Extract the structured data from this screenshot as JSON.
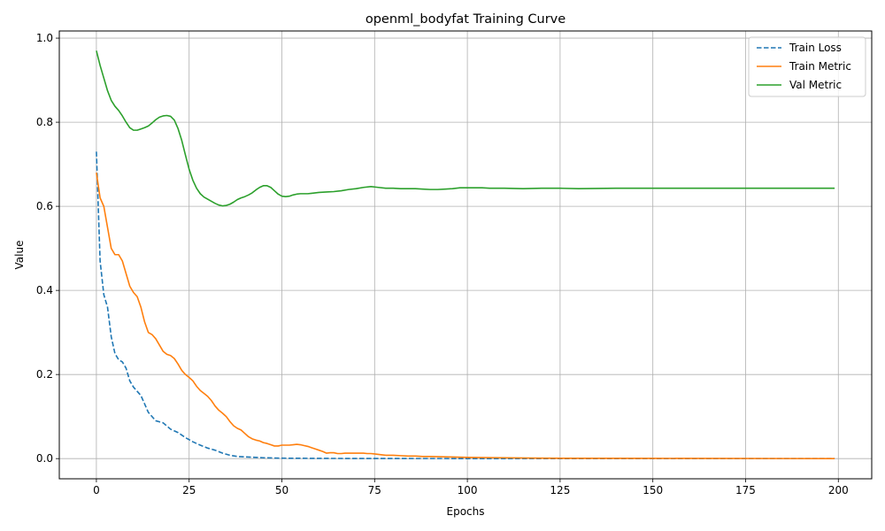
{
  "chart_data": {
    "type": "line",
    "title": "openml_bodyfat Training Curve",
    "xlabel": "Epochs",
    "ylabel": "Value",
    "xlim": [
      -10,
      209
    ],
    "ylim": [
      -0.048,
      1.017
    ],
    "xticks": [
      0,
      25,
      50,
      75,
      100,
      125,
      150,
      175,
      200
    ],
    "yticks": [
      0.0,
      0.2,
      0.4,
      0.6,
      0.8,
      1.0
    ],
    "ytick_labels": [
      "0.0",
      "0.2",
      "0.4",
      "0.6",
      "0.8",
      "1.0"
    ],
    "grid": true,
    "legend_position": "upper right",
    "series": [
      {
        "name": "Train Loss",
        "color": "#1f77b4",
        "style": "dashed",
        "points": [
          [
            0,
            0.73
          ],
          [
            1,
            0.47
          ],
          [
            2,
            0.39
          ],
          [
            3,
            0.36
          ],
          [
            4,
            0.29
          ],
          [
            5,
            0.25
          ],
          [
            6,
            0.235
          ],
          [
            7,
            0.23
          ],
          [
            8,
            0.215
          ],
          [
            9,
            0.185
          ],
          [
            10,
            0.17
          ],
          [
            12,
            0.15
          ],
          [
            14,
            0.11
          ],
          [
            16,
            0.09
          ],
          [
            18,
            0.085
          ],
          [
            20,
            0.07
          ],
          [
            22,
            0.062
          ],
          [
            24,
            0.05
          ],
          [
            26,
            0.04
          ],
          [
            28,
            0.032
          ],
          [
            30,
            0.025
          ],
          [
            32,
            0.02
          ],
          [
            34,
            0.013
          ],
          [
            36,
            0.008
          ],
          [
            38,
            0.005
          ],
          [
            40,
            0.004
          ],
          [
            45,
            0.002
          ],
          [
            50,
            0.001
          ],
          [
            60,
            0.0005
          ],
          [
            70,
            0.0003
          ],
          [
            80,
            0.0002
          ],
          [
            100,
            0.0001
          ],
          [
            150,
            0.0
          ],
          [
            199,
            0.0
          ]
        ]
      },
      {
        "name": "Train Metric",
        "color": "#ff7f0e",
        "style": "solid",
        "points": [
          [
            0,
            0.68
          ],
          [
            1,
            0.62
          ],
          [
            2,
            0.6
          ],
          [
            3,
            0.55
          ],
          [
            4,
            0.5
          ],
          [
            5,
            0.485
          ],
          [
            6,
            0.485
          ],
          [
            7,
            0.47
          ],
          [
            8,
            0.44
          ],
          [
            9,
            0.41
          ],
          [
            10,
            0.395
          ],
          [
            11,
            0.385
          ],
          [
            12,
            0.36
          ],
          [
            13,
            0.325
          ],
          [
            14,
            0.3
          ],
          [
            15,
            0.295
          ],
          [
            16,
            0.285
          ],
          [
            17,
            0.27
          ],
          [
            18,
            0.255
          ],
          [
            19,
            0.248
          ],
          [
            20,
            0.245
          ],
          [
            21,
            0.238
          ],
          [
            22,
            0.225
          ],
          [
            23,
            0.21
          ],
          [
            24,
            0.2
          ],
          [
            25,
            0.193
          ],
          [
            26,
            0.185
          ],
          [
            27,
            0.172
          ],
          [
            28,
            0.162
          ],
          [
            29,
            0.155
          ],
          [
            30,
            0.148
          ],
          [
            31,
            0.138
          ],
          [
            32,
            0.125
          ],
          [
            33,
            0.115
          ],
          [
            34,
            0.108
          ],
          [
            35,
            0.1
          ],
          [
            36,
            0.088
          ],
          [
            37,
            0.078
          ],
          [
            38,
            0.072
          ],
          [
            39,
            0.068
          ],
          [
            40,
            0.06
          ],
          [
            41,
            0.052
          ],
          [
            42,
            0.047
          ],
          [
            43,
            0.044
          ],
          [
            44,
            0.042
          ],
          [
            45,
            0.038
          ],
          [
            46,
            0.036
          ],
          [
            47,
            0.033
          ],
          [
            48,
            0.03
          ],
          [
            49,
            0.03
          ],
          [
            50,
            0.032
          ],
          [
            51,
            0.032
          ],
          [
            52,
            0.032
          ],
          [
            53,
            0.033
          ],
          [
            54,
            0.034
          ],
          [
            55,
            0.033
          ],
          [
            56,
            0.031
          ],
          [
            57,
            0.029
          ],
          [
            58,
            0.026
          ],
          [
            59,
            0.023
          ],
          [
            60,
            0.02
          ],
          [
            61,
            0.017
          ],
          [
            62,
            0.013
          ],
          [
            63,
            0.014
          ],
          [
            64,
            0.014
          ],
          [
            65,
            0.012
          ],
          [
            66,
            0.012
          ],
          [
            67,
            0.013
          ],
          [
            68,
            0.013
          ],
          [
            69,
            0.013
          ],
          [
            70,
            0.013
          ],
          [
            71,
            0.013
          ],
          [
            72,
            0.013
          ],
          [
            73,
            0.012
          ],
          [
            74,
            0.012
          ],
          [
            75,
            0.011
          ],
          [
            76,
            0.01
          ],
          [
            77,
            0.009
          ],
          [
            78,
            0.008
          ],
          [
            79,
            0.008
          ],
          [
            80,
            0.008
          ],
          [
            82,
            0.007
          ],
          [
            84,
            0.006
          ],
          [
            86,
            0.006
          ],
          [
            88,
            0.005
          ],
          [
            90,
            0.005
          ],
          [
            95,
            0.004
          ],
          [
            100,
            0.003
          ],
          [
            110,
            0.002
          ],
          [
            120,
            0.001
          ],
          [
            150,
            0.0005
          ],
          [
            199,
            0.0
          ]
        ]
      },
      {
        "name": "Val Metric",
        "color": "#2ca02c",
        "style": "solid",
        "points": [
          [
            0,
            0.97
          ],
          [
            1,
            0.935
          ],
          [
            2,
            0.905
          ],
          [
            3,
            0.875
          ],
          [
            4,
            0.852
          ],
          [
            5,
            0.838
          ],
          [
            6,
            0.828
          ],
          [
            7,
            0.815
          ],
          [
            8,
            0.8
          ],
          [
            9,
            0.787
          ],
          [
            10,
            0.781
          ],
          [
            11,
            0.781
          ],
          [
            12,
            0.784
          ],
          [
            13,
            0.787
          ],
          [
            14,
            0.791
          ],
          [
            15,
            0.798
          ],
          [
            16,
            0.806
          ],
          [
            17,
            0.812
          ],
          [
            18,
            0.815
          ],
          [
            19,
            0.816
          ],
          [
            20,
            0.814
          ],
          [
            21,
            0.805
          ],
          [
            22,
            0.785
          ],
          [
            23,
            0.757
          ],
          [
            24,
            0.722
          ],
          [
            25,
            0.688
          ],
          [
            26,
            0.662
          ],
          [
            27,
            0.643
          ],
          [
            28,
            0.63
          ],
          [
            29,
            0.622
          ],
          [
            30,
            0.617
          ],
          [
            31,
            0.612
          ],
          [
            32,
            0.607
          ],
          [
            33,
            0.603
          ],
          [
            34,
            0.601
          ],
          [
            35,
            0.602
          ],
          [
            36,
            0.605
          ],
          [
            37,
            0.61
          ],
          [
            38,
            0.616
          ],
          [
            39,
            0.62
          ],
          [
            40,
            0.623
          ],
          [
            41,
            0.627
          ],
          [
            42,
            0.632
          ],
          [
            43,
            0.639
          ],
          [
            44,
            0.645
          ],
          [
            45,
            0.649
          ],
          [
            46,
            0.649
          ],
          [
            47,
            0.645
          ],
          [
            48,
            0.637
          ],
          [
            49,
            0.629
          ],
          [
            50,
            0.624
          ],
          [
            51,
            0.623
          ],
          [
            52,
            0.624
          ],
          [
            53,
            0.627
          ],
          [
            54,
            0.629
          ],
          [
            55,
            0.63
          ],
          [
            56,
            0.63
          ],
          [
            57,
            0.63
          ],
          [
            58,
            0.631
          ],
          [
            59,
            0.632
          ],
          [
            60,
            0.633
          ],
          [
            62,
            0.634
          ],
          [
            64,
            0.635
          ],
          [
            66,
            0.637
          ],
          [
            68,
            0.64
          ],
          [
            70,
            0.642
          ],
          [
            72,
            0.645
          ],
          [
            74,
            0.647
          ],
          [
            76,
            0.645
          ],
          [
            78,
            0.643
          ],
          [
            80,
            0.643
          ],
          [
            82,
            0.642
          ],
          [
            84,
            0.642
          ],
          [
            86,
            0.642
          ],
          [
            88,
            0.641
          ],
          [
            90,
            0.64
          ],
          [
            92,
            0.64
          ],
          [
            94,
            0.641
          ],
          [
            96,
            0.642
          ],
          [
            98,
            0.644
          ],
          [
            100,
            0.644
          ],
          [
            102,
            0.644
          ],
          [
            104,
            0.644
          ],
          [
            106,
            0.643
          ],
          [
            110,
            0.643
          ],
          [
            115,
            0.642
          ],
          [
            120,
            0.643
          ],
          [
            125,
            0.643
          ],
          [
            130,
            0.642
          ],
          [
            140,
            0.643
          ],
          [
            150,
            0.643
          ],
          [
            160,
            0.643
          ],
          [
            170,
            0.643
          ],
          [
            180,
            0.643
          ],
          [
            190,
            0.643
          ],
          [
            199,
            0.643
          ]
        ]
      }
    ]
  }
}
